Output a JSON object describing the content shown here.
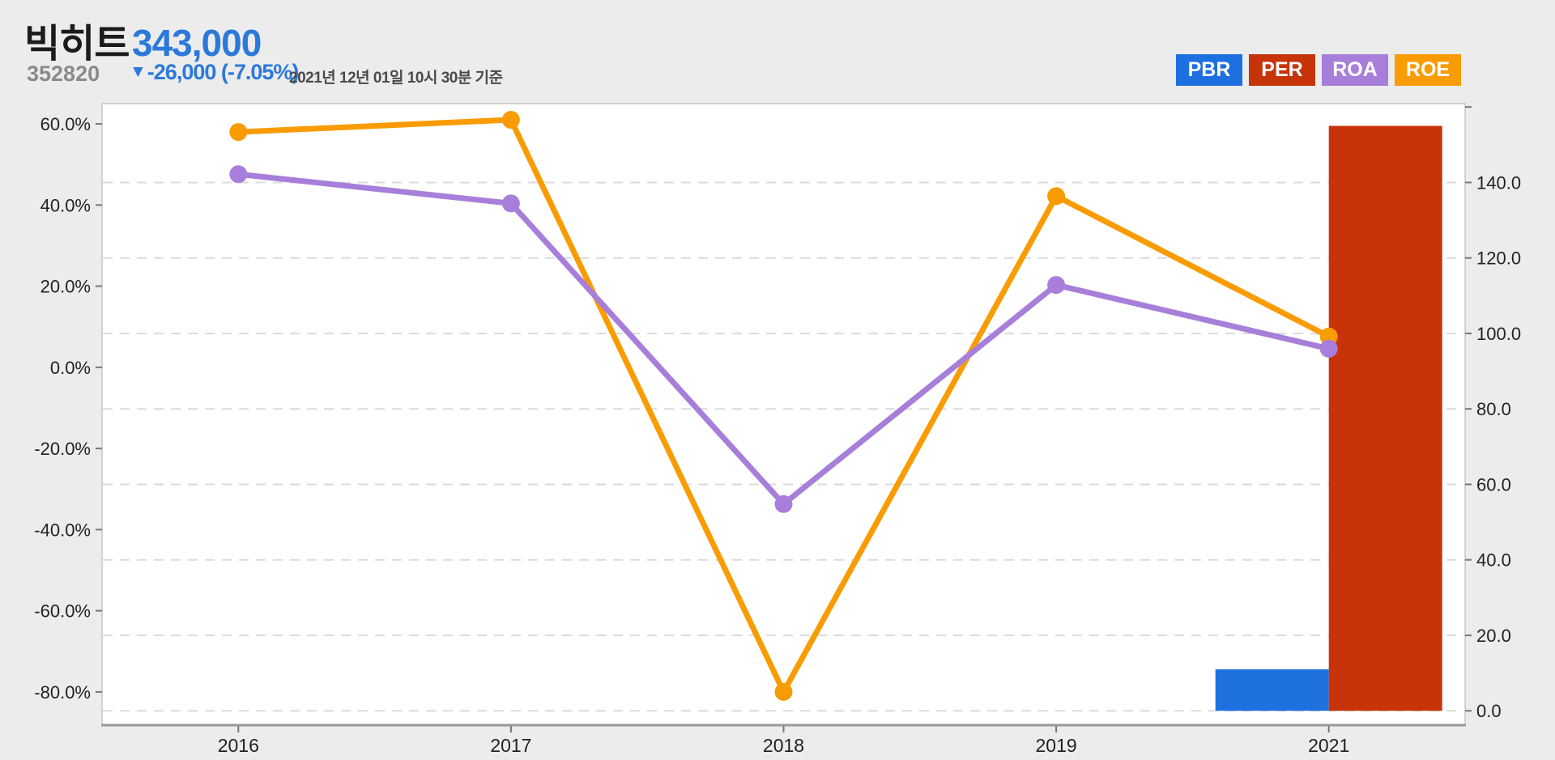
{
  "header": {
    "stock_name": "빅히트",
    "stock_code": "352820",
    "price": "343,000",
    "change_arrow": "▼",
    "change_text": "-26,000 (-7.05%)",
    "timestamp": "2021년 12년 01일 10시 30분 기준",
    "name_color": "#1B1B1B",
    "code_color": "#8A8A8A",
    "price_color": "#2B79DB"
  },
  "legend": {
    "buttons": [
      {
        "label": "PBR",
        "color": "#1E6FE0"
      },
      {
        "label": "PER",
        "color": "#C8340A"
      },
      {
        "label": "ROA",
        "color": "#A77FDA"
      },
      {
        "label": "ROE",
        "color": "#F99C03"
      }
    ]
  },
  "chart_data": {
    "type": "mixed",
    "categories": [
      "2016",
      "2017",
      "2018",
      "2019",
      "2021"
    ],
    "series": [
      {
        "name": "PBR",
        "type": "bar",
        "axis": "right",
        "color": "#2071E0",
        "values": [
          null,
          null,
          null,
          null,
          11
        ]
      },
      {
        "name": "PER",
        "type": "bar",
        "axis": "right",
        "color": "#C8340A",
        "values": [
          null,
          null,
          null,
          null,
          155
        ]
      },
      {
        "name": "ROE",
        "type": "line",
        "axis": "left",
        "color": "#F99C03",
        "values": [
          58.0,
          61.0,
          -80.0,
          42.2,
          7.6
        ]
      },
      {
        "name": "ROA",
        "type": "line",
        "axis": "left",
        "color": "#A77FDA",
        "values": [
          47.6,
          40.4,
          -33.7,
          20.3,
          4.6
        ]
      }
    ],
    "left_axis": {
      "ticks": [
        60,
        40,
        20,
        0,
        -20,
        -40,
        -60,
        -80
      ],
      "tick_format": "percent1",
      "range": [
        -88,
        65
      ]
    },
    "right_axis": {
      "ticks": [
        140,
        120,
        100,
        80,
        60,
        40,
        20,
        0
      ],
      "tick_format": "fixed1",
      "range": [
        -3.6,
        160.9
      ],
      "extra_unlabeled_tick": 160
    },
    "grid": {
      "horizontal": "dashed",
      "aligned_to": "right_axis"
    },
    "colors": {
      "plot_background": "#FFFFFF",
      "page_background": "#ECECEC",
      "gridline": "#DBDBDB",
      "border": "#C6C6C6",
      "bottom_axis": "#9B9B9B",
      "tick_mark": "#777777",
      "tick_text": "#222222"
    }
  }
}
